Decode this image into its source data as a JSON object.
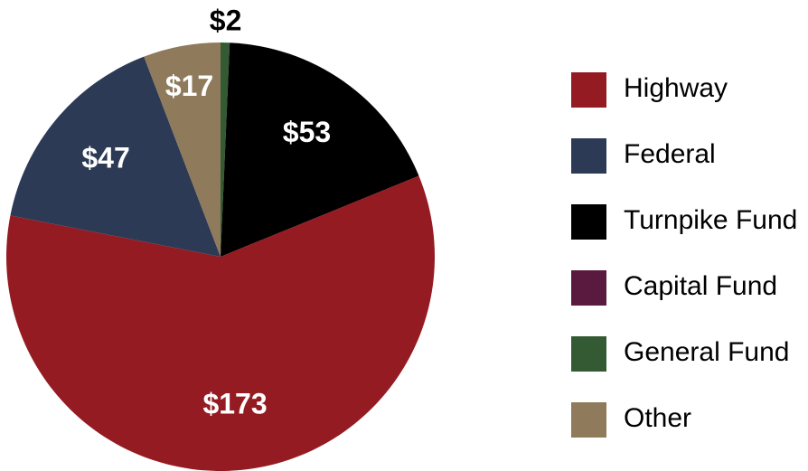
{
  "chart_data": {
    "type": "pie",
    "categories": [
      "Highway",
      "Federal",
      "Turnpike Fund",
      "Capital Fund",
      "General Fund",
      "Other"
    ],
    "values": [
      173,
      47,
      53,
      0,
      2,
      17
    ],
    "value_labels": [
      "$173",
      "$47",
      "$53",
      null,
      "$2",
      "$17"
    ],
    "colors": [
      "#951b22",
      "#2c3a55",
      "#000000",
      "#5a1a40",
      "#335a32",
      "#8f7a5c"
    ],
    "legend": "right"
  }
}
